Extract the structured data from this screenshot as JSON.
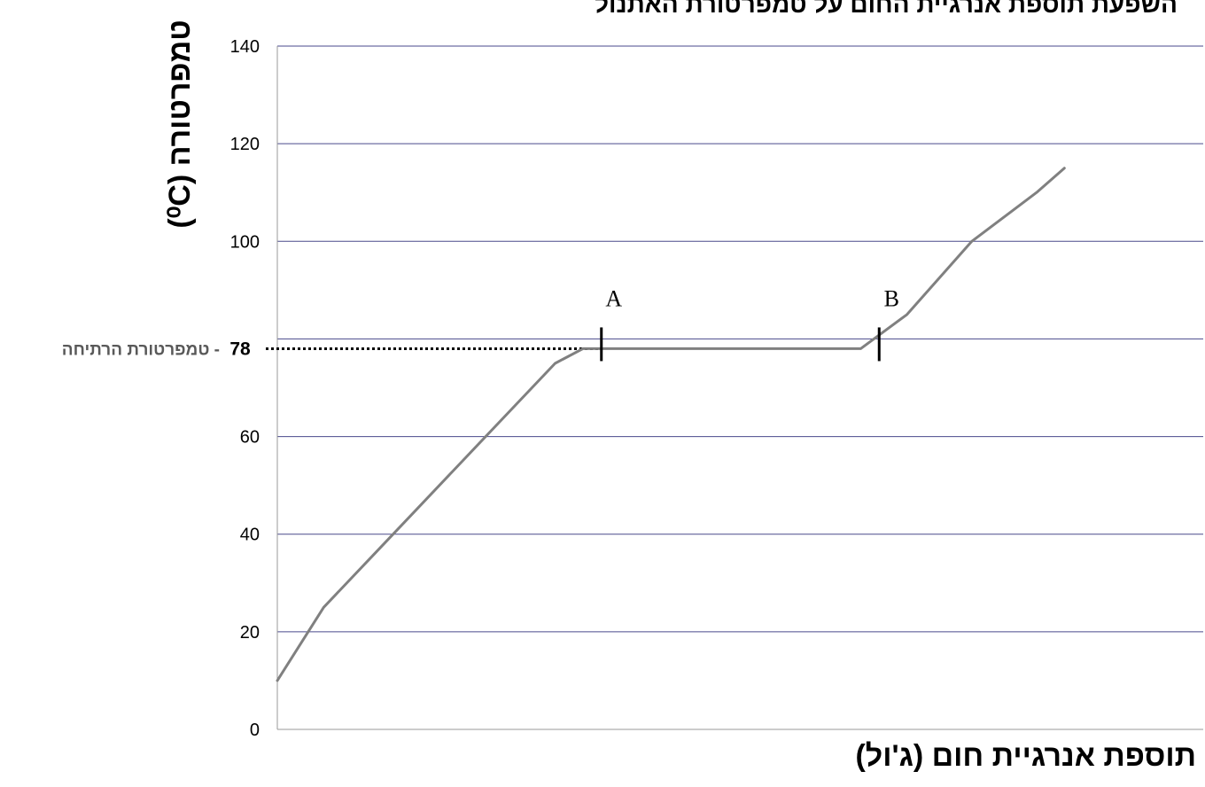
{
  "chart_data": {
    "type": "line",
    "title": "השפעת  תוספת אנרגיית החום על  טמפרטורת  האתנול",
    "xlabel": "תוספת אנרגיית חום (ג'ול)",
    "ylabel": "טמפרטורה  (⁰C)",
    "ylim": [
      0,
      140
    ],
    "yticks": [
      0,
      20,
      40,
      60,
      100,
      120,
      140
    ],
    "grid": true,
    "series": [
      {
        "values_x": [
          0,
          0.05,
          0.1,
          0.15,
          0.2,
          0.25,
          0.3,
          0.33,
          0.35,
          0.55,
          0.63,
          0.68,
          0.75,
          0.82,
          0.85
        ],
        "values_y": [
          10,
          25,
          35,
          45,
          55,
          65,
          75,
          78,
          78,
          78,
          78,
          85,
          100,
          110,
          115
        ]
      }
    ],
    "annotations": [
      {
        "label": "A",
        "x": 0.35,
        "y": 78
      },
      {
        "label": "B",
        "x": 0.65,
        "y": 78
      }
    ],
    "reference_line": {
      "value": "78",
      "label": "- טמפרטורת הרתיחה",
      "y": 78
    },
    "colors": {
      "line": "#808080",
      "gridline": "#4a4a8c",
      "reference": "#000000",
      "marker": "#000000"
    }
  }
}
